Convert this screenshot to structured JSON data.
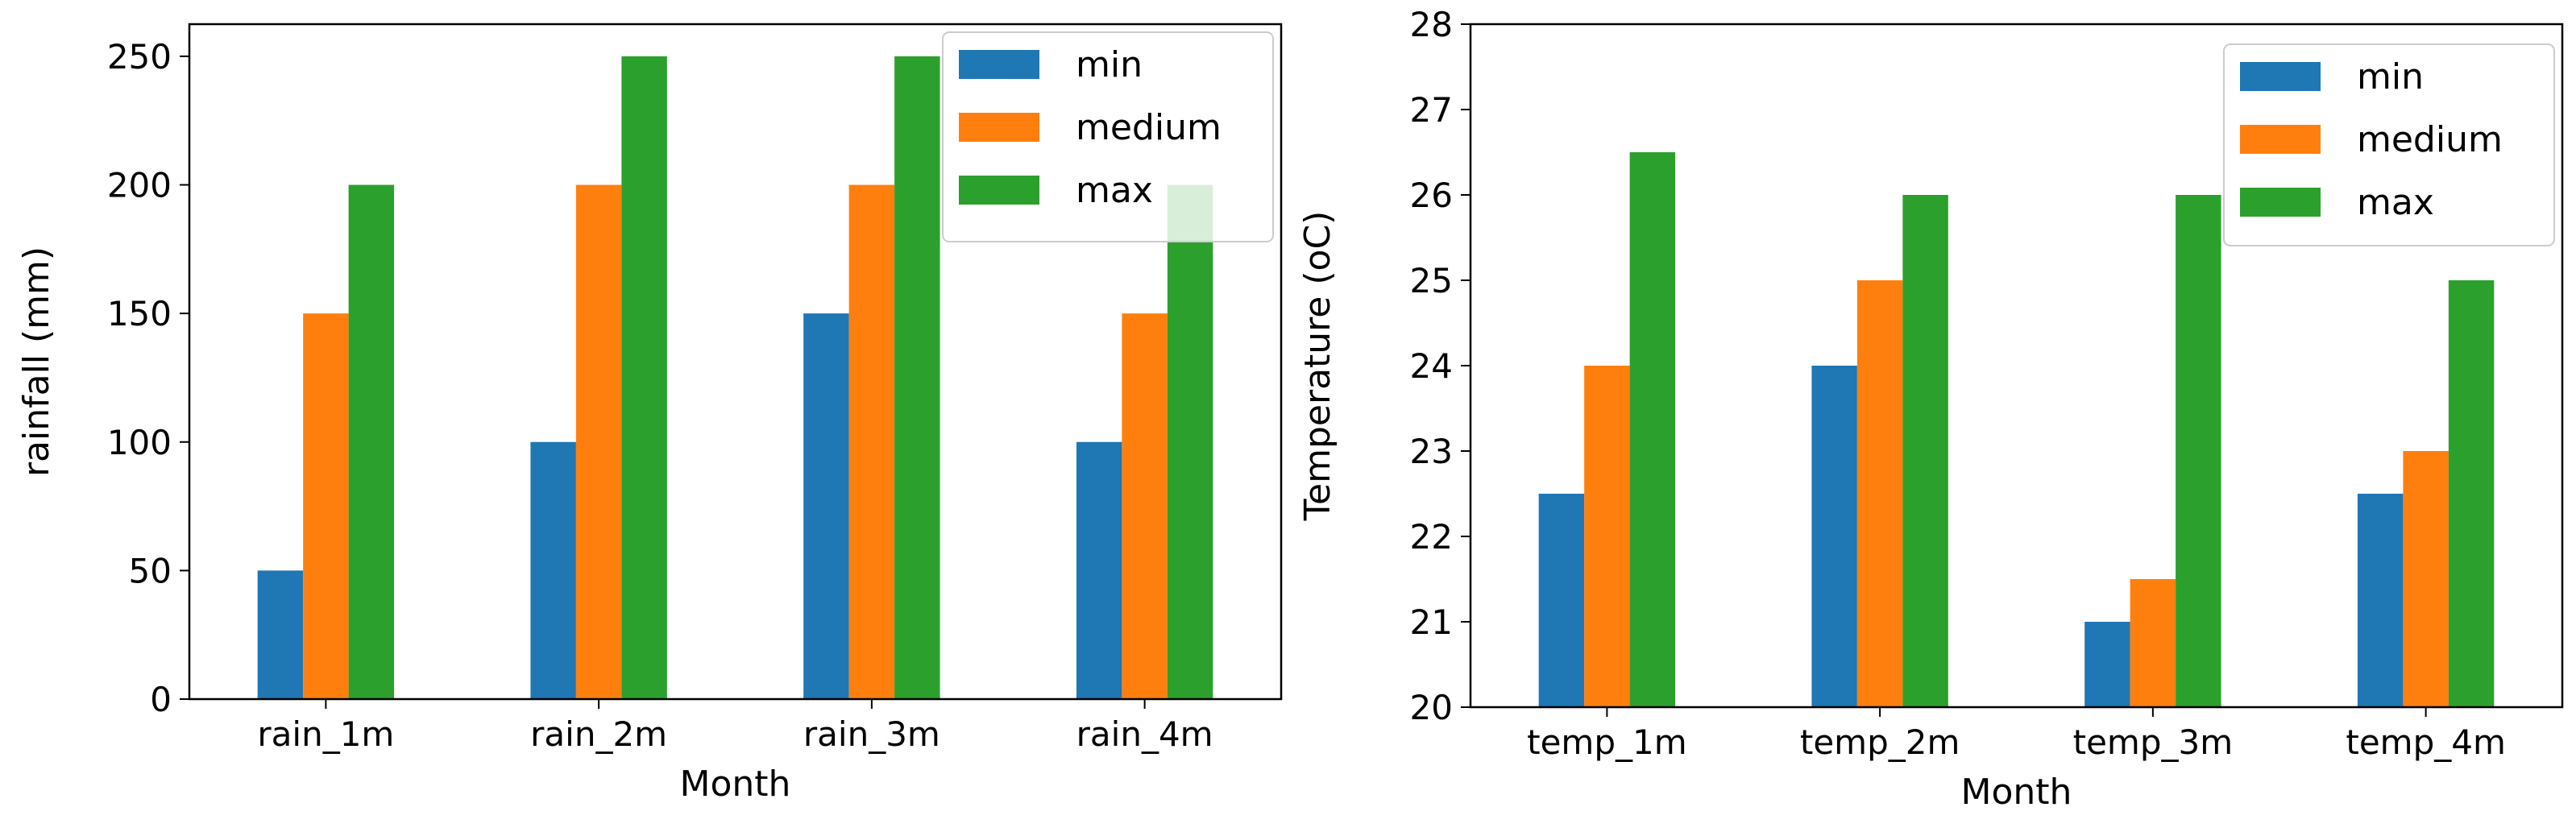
{
  "chart_data": [
    {
      "type": "bar",
      "categories": [
        "rain_1m",
        "rain_2m",
        "rain_3m",
        "rain_4m"
      ],
      "series": [
        {
          "name": "min",
          "values": [
            50,
            100,
            150,
            100
          ],
          "color": "#1f77b4"
        },
        {
          "name": "medium",
          "values": [
            150,
            200,
            200,
            150
          ],
          "color": "#ff7f0e"
        },
        {
          "name": "max",
          "values": [
            200,
            250,
            250,
            200
          ],
          "color": "#2ca02c"
        }
      ],
      "xlabel": "Month",
      "ylabel": "rainfall (mm)",
      "ylim": [
        0,
        262.5
      ],
      "yticks": [
        0,
        50,
        100,
        150,
        200,
        250
      ],
      "legend": "upper right"
    },
    {
      "type": "bar",
      "categories": [
        "temp_1m",
        "temp_2m",
        "temp_3m",
        "temp_4m"
      ],
      "series": [
        {
          "name": "min",
          "values": [
            22.5,
            24,
            21,
            22.5
          ],
          "color": "#1f77b4"
        },
        {
          "name": "medium",
          "values": [
            24,
            25,
            21.5,
            23
          ],
          "color": "#ff7f0e"
        },
        {
          "name": "max",
          "values": [
            26.5,
            26,
            26,
            25
          ],
          "color": "#2ca02c"
        }
      ],
      "xlabel": "Month",
      "ylabel": "Temperature (oC)",
      "ylim": [
        20,
        28
      ],
      "yticks": [
        20,
        21,
        22,
        23,
        24,
        25,
        26,
        27,
        28
      ],
      "legend": "upper right"
    }
  ]
}
